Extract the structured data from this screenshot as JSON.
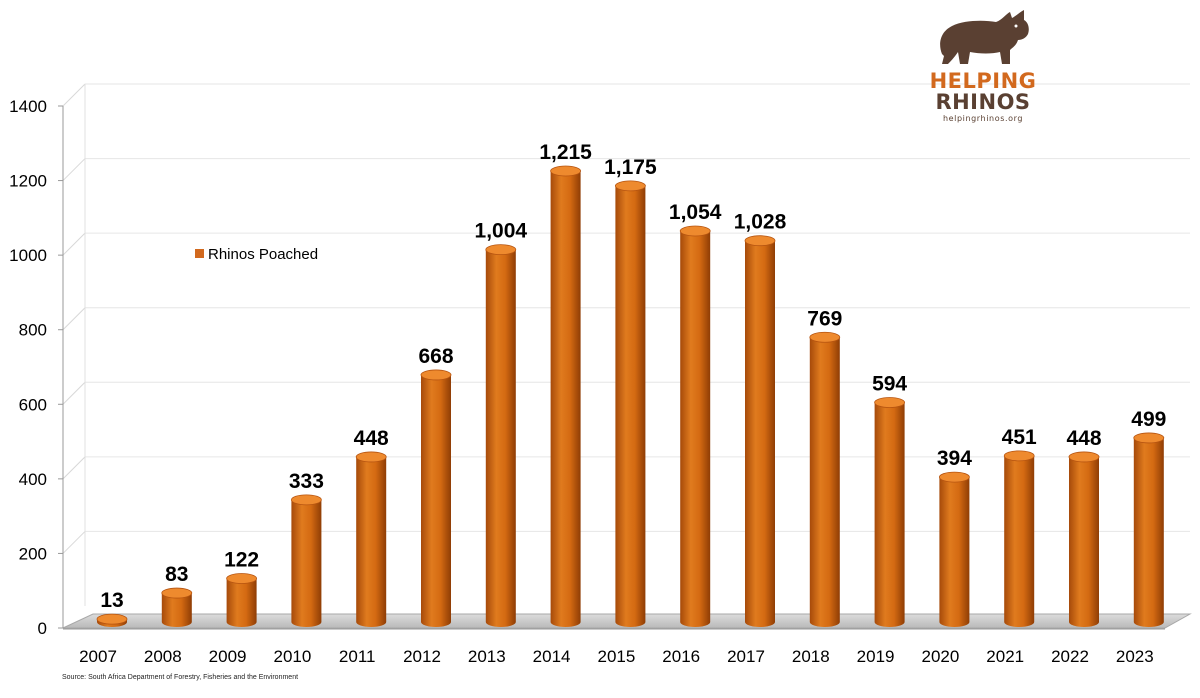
{
  "chart_data": {
    "type": "bar",
    "categories": [
      "2007",
      "2008",
      "2009",
      "2010",
      "2011",
      "2012",
      "2013",
      "2014",
      "2015",
      "2016",
      "2017",
      "2018",
      "2019",
      "2020",
      "2021",
      "2022",
      "2023"
    ],
    "series": [
      {
        "name": "Rhinos Poached",
        "values": [
          13,
          83,
          122,
          333,
          448,
          668,
          1004,
          1215,
          1175,
          1054,
          1028,
          769,
          594,
          394,
          451,
          448,
          499
        ],
        "labels": [
          "13",
          "83",
          "122",
          "333",
          "448",
          "668",
          "1,004",
          "1,215",
          "1,175",
          "1,054",
          "1,028",
          "769",
          "594",
          "394",
          "451",
          "448",
          "499"
        ],
        "color": "#d2691e"
      }
    ],
    "yticks": [
      "0",
      "200",
      "400",
      "600",
      "800",
      "1000",
      "1200",
      "1400"
    ],
    "ylim": [
      0,
      1400
    ],
    "grid": true,
    "legend_position": "upper-left"
  },
  "logo": {
    "word1": "HELPING",
    "word2": "RHINOS",
    "url": "helpingrhinos.org",
    "primary_color": "#d2691e",
    "secondary_color": "#5a4032"
  },
  "source": "Source: South Africa Department of Forestry, Fisheries and the Environment"
}
